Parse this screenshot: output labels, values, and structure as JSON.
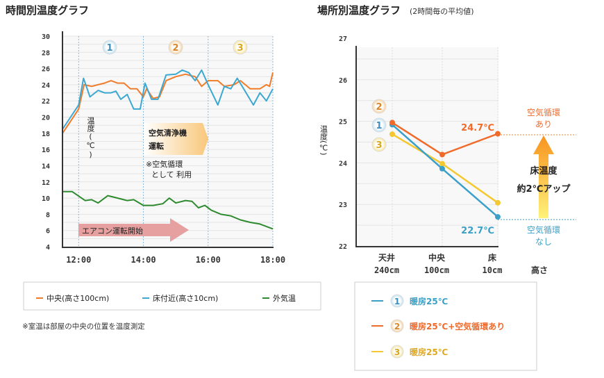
{
  "chart_data": [
    {
      "type": "line",
      "title": "時間別温度グラフ",
      "ylabel": "温度(℃)",
      "xlabel": "",
      "xlim": [
        "11:30",
        "18:00"
      ],
      "ylim": [
        4,
        30
      ],
      "yticks": [
        "30",
        "28",
        "26",
        "24",
        "22",
        "20",
        "18",
        "16",
        "14",
        "12",
        "10",
        "8",
        "6",
        "4"
      ],
      "xticks": [
        "12:00",
        "14:00",
        "16:00",
        "18:00"
      ],
      "grid": true,
      "legend_position": "bottom",
      "phase_markers": [
        "1",
        "2",
        "3"
      ],
      "annotations": {
        "purifier": [
          "空気清浄機",
          "運転"
        ],
        "purifier_note": [
          "※空気循環",
          "として 利用"
        ],
        "ac_start": "エアコン運転開始"
      },
      "series": [
        {
          "name": "中央(高さ100cm)",
          "color": "#f07c2a",
          "x": [
            "11:30",
            "11:45",
            "12:00",
            "12:10",
            "12:24",
            "12:36",
            "12:48",
            "13:00",
            "13:12",
            "13:24",
            "13:36",
            "13:48",
            "14:00",
            "14:06",
            "14:18",
            "14:30",
            "14:42",
            "15:00",
            "15:18",
            "15:36",
            "15:48",
            "16:00",
            "16:18",
            "16:30",
            "16:48",
            "17:00",
            "17:18",
            "17:36",
            "17:48",
            "17:54",
            "18:00"
          ],
          "values": [
            18,
            19.5,
            21,
            24,
            23.8,
            24,
            24.2,
            24.5,
            24.2,
            24.2,
            23.5,
            23.5,
            22.5,
            23.5,
            22.3,
            22.5,
            24.5,
            25,
            25.3,
            25,
            23.8,
            24.5,
            24.5,
            23.8,
            24,
            24.5,
            23.5,
            23.5,
            24,
            23.8,
            25.5
          ]
        },
        {
          "name": "床付近(高さ10cm)",
          "color": "#3aa8d0",
          "x": [
            "11:30",
            "11:45",
            "12:00",
            "12:09",
            "12:21",
            "12:36",
            "12:48",
            "13:00",
            "13:09",
            "13:18",
            "13:30",
            "13:42",
            "13:54",
            "14:03",
            "14:15",
            "14:27",
            "14:42",
            "15:00",
            "15:12",
            "15:24",
            "15:36",
            "15:48",
            "16:00",
            "16:18",
            "16:30",
            "16:42",
            "16:54",
            "17:06",
            "17:24",
            "17:36",
            "17:48",
            "18:00"
          ],
          "values": [
            18.5,
            20,
            21.5,
            24.8,
            22.5,
            23.3,
            23,
            23,
            23.2,
            22.2,
            22.8,
            21,
            21,
            24.2,
            22.2,
            22.2,
            25.2,
            25.3,
            25.8,
            25.5,
            24.5,
            25.8,
            24,
            21.5,
            23.8,
            23.5,
            24.8,
            23.5,
            21.5,
            23,
            22,
            23.5
          ]
        },
        {
          "name": "外気温",
          "color": "#2e8a2e",
          "x": [
            "11:30",
            "11:48",
            "12:12",
            "12:24",
            "12:36",
            "12:54",
            "13:06",
            "13:30",
            "13:42",
            "14:00",
            "14:18",
            "14:36",
            "14:48",
            "15:00",
            "15:18",
            "15:30",
            "15:42",
            "15:54",
            "16:06",
            "16:24",
            "16:42",
            "17:00",
            "17:18",
            "17:36",
            "18:00"
          ],
          "values": [
            10.8,
            10.8,
            9.7,
            9.8,
            9.4,
            10.3,
            10.1,
            9.7,
            9.8,
            9.1,
            9.1,
            9.3,
            10,
            9.4,
            9.7,
            9.6,
            8.8,
            9.1,
            8.5,
            8,
            7.8,
            7.3,
            7,
            6.8,
            6.2
          ]
        }
      ],
      "footnote": "※室温は部屋の中央の位置を温度測定"
    },
    {
      "type": "line",
      "title": "場所別温度グラフ",
      "subtitle": "(2時間毎の平均値)",
      "ylabel": "温度(℃)",
      "xlabel": "高さ",
      "ylim": [
        22,
        27
      ],
      "yticks": [
        "27",
        "26",
        "25",
        "24",
        "23",
        "22"
      ],
      "categories": [
        [
          "天井",
          "240cm"
        ],
        [
          "中央",
          "100cm"
        ],
        [
          "床",
          "10cm"
        ]
      ],
      "grid": true,
      "legend_position": "bottom",
      "series": [
        {
          "marker": "1",
          "name": "暖房25℃",
          "color": "#3aa0c8",
          "values": [
            24.92,
            23.86,
            22.7
          ]
        },
        {
          "marker": "2",
          "name": "暖房25℃+空気循環あり",
          "color": "#f06a2a",
          "values": [
            24.97,
            24.2,
            24.7
          ]
        },
        {
          "marker": "3",
          "name": "暖房25℃",
          "color": "#f5c830",
          "values": [
            24.69,
            23.98,
            23.04
          ]
        }
      ],
      "annotations": {
        "with_label": "24.7℃",
        "without_label": "22.7℃",
        "with_text": [
          "空気循環",
          "あり"
        ],
        "without_text": [
          "空気循環",
          "なし"
        ],
        "rise_text": [
          "床温度",
          "約2℃アップ"
        ]
      }
    }
  ]
}
